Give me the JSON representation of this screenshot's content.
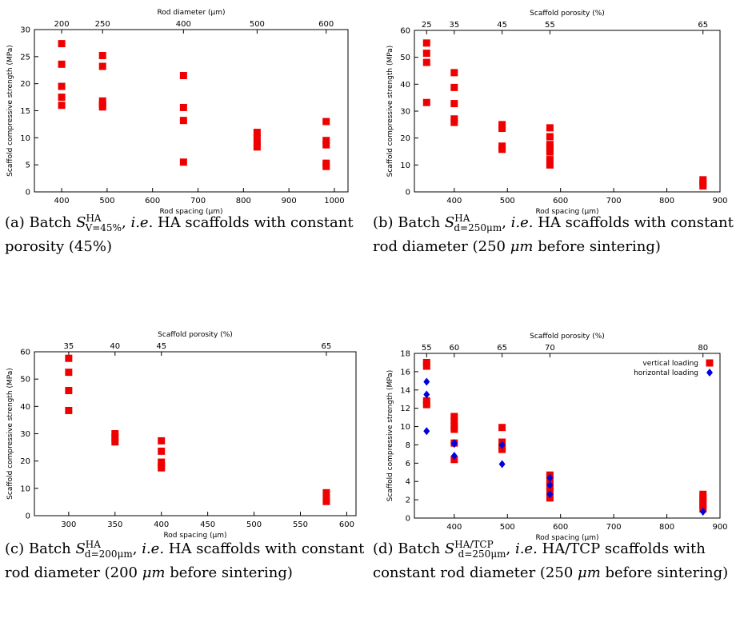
{
  "charts": [
    {
      "id": "a",
      "caption": {
        "label": "(a) Batch ",
        "sym": "S",
        "sup": "HA",
        "sub": "V=45%",
        "ie": "i.e.",
        "rest": " HA scaffolds with constant porosity (45%)"
      },
      "chart_data": {
        "type": "scatter",
        "xlabel": "Rod spacing (µm)",
        "ylabel": "Scaffold compressive strength (MPa)",
        "top_label": "Rod diameter (µm)",
        "xlim": [
          340,
          1030
        ],
        "ylim": [
          0,
          30
        ],
        "xticks": [
          400,
          500,
          600,
          700,
          800,
          900,
          1000
        ],
        "yticks": [
          0,
          5,
          10,
          15,
          20,
          25,
          30
        ],
        "top_ticks": [
          {
            "label": "200",
            "x": 400
          },
          {
            "label": "250",
            "x": 490
          },
          {
            "label": "400",
            "x": 668
          },
          {
            "label": "500",
            "x": 830
          },
          {
            "label": "600",
            "x": 982
          }
        ],
        "series": [
          {
            "marker": "square",
            "color": "#ee0000",
            "points": [
              [
                400,
                27.4
              ],
              [
                400,
                23.6
              ],
              [
                400,
                19.5
              ],
              [
                400,
                17.5
              ],
              [
                400,
                16
              ],
              [
                490,
                25.2
              ],
              [
                490,
                23.2
              ],
              [
                490,
                16.8
              ],
              [
                490,
                16.1
              ],
              [
                490,
                15.7
              ],
              [
                668,
                21.5
              ],
              [
                668,
                15.6
              ],
              [
                668,
                13.2
              ],
              [
                668,
                5.5
              ],
              [
                830,
                11
              ],
              [
                830,
                10
              ],
              [
                830,
                9
              ],
              [
                830,
                8.3
              ],
              [
                982,
                13
              ],
              [
                982,
                9.5
              ],
              [
                982,
                8.7
              ],
              [
                982,
                5.3
              ],
              [
                982,
                4.7
              ]
            ]
          }
        ]
      }
    },
    {
      "id": "b",
      "caption": {
        "label": "(b) Batch ",
        "sym": "S",
        "sup": "HA",
        "sub": "d=250μm",
        "ie": "i.e.",
        "rest": " HA scaffolds with constant rod diameter (250 ",
        "unit": "μm",
        "rest2": " before sintering)"
      },
      "chart_data": {
        "type": "scatter",
        "xlabel": "Rod spacing (µm)",
        "ylabel": "Scaffold compressive strength (MPa)",
        "top_label": "Scaffold porosity (%)",
        "xlim": [
          325,
          900
        ],
        "ylim": [
          0,
          60
        ],
        "xticks": [
          400,
          500,
          600,
          700,
          800,
          900
        ],
        "yticks": [
          0,
          10,
          20,
          30,
          40,
          50,
          60
        ],
        "top_ticks": [
          {
            "label": "25",
            "x": 348
          },
          {
            "label": "35",
            "x": 400
          },
          {
            "label": "45",
            "x": 490
          },
          {
            "label": "55",
            "x": 580
          },
          {
            "label": "65",
            "x": 868
          }
        ],
        "series": [
          {
            "marker": "square",
            "color": "#ee0000",
            "points": [
              [
                348,
                55.3
              ],
              [
                348,
                51.5
              ],
              [
                348,
                48.1
              ],
              [
                348,
                33.2
              ],
              [
                400,
                44.3
              ],
              [
                400,
                38.8
              ],
              [
                400,
                32.8
              ],
              [
                400,
                27.1
              ],
              [
                400,
                25.8
              ],
              [
                490,
                25
              ],
              [
                490,
                23.6
              ],
              [
                490,
                17
              ],
              [
                490,
                15.8
              ],
              [
                580,
                23.8
              ],
              [
                580,
                20.5
              ],
              [
                580,
                17.6
              ],
              [
                580,
                16
              ],
              [
                580,
                14.8
              ],
              [
                580,
                12
              ],
              [
                580,
                10
              ],
              [
                868,
                4.5
              ],
              [
                868,
                3.3
              ],
              [
                868,
                2.2
              ]
            ]
          }
        ]
      }
    },
    {
      "id": "c",
      "caption": {
        "label": "(c) Batch ",
        "sym": "S",
        "sup": "HA",
        "sub": "d=200μm",
        "ie": "i.e.",
        "rest": " HA scaffolds with constant rod diameter (200 ",
        "unit": "μm",
        "rest2": " before sintering)"
      },
      "chart_data": {
        "type": "scatter",
        "xlabel": "Rod spacing (µm)",
        "ylabel": "Scaffold compressive strength (MPa)",
        "top_label": "Scaffold porosity (%)",
        "xlim": [
          263,
          610
        ],
        "ylim": [
          0,
          60
        ],
        "xticks": [
          300,
          350,
          400,
          450,
          500,
          550,
          600
        ],
        "yticks": [
          0,
          10,
          20,
          30,
          40,
          50,
          60
        ],
        "top_ticks": [
          {
            "label": "35",
            "x": 300
          },
          {
            "label": "40",
            "x": 350
          },
          {
            "label": "45",
            "x": 400
          },
          {
            "label": "65",
            "x": 578
          }
        ],
        "series": [
          {
            "marker": "square",
            "color": "#ee0000",
            "points": [
              [
                300,
                57.6
              ],
              [
                300,
                52.5
              ],
              [
                300,
                45.8
              ],
              [
                300,
                38.5
              ],
              [
                350,
                30
              ],
              [
                350,
                28.5
              ],
              [
                350,
                27
              ],
              [
                400,
                27.4
              ],
              [
                400,
                23.6
              ],
              [
                400,
                19.6
              ],
              [
                400,
                18.3
              ],
              [
                400,
                17.5
              ],
              [
                578,
                8.4
              ],
              [
                578,
                6.4
              ],
              [
                578,
                5.2
              ]
            ]
          }
        ]
      }
    },
    {
      "id": "d",
      "caption": {
        "label": "(d) Batch ",
        "sym": "S",
        "sup": "HA/TCP",
        "sub": "d=250μm",
        "ie": "i.e.",
        "rest": " HA/TCP scaffolds with constant rod diameter (250 ",
        "unit": "μm",
        "rest2": " before sintering)"
      },
      "chart_data": {
        "type": "scatter",
        "xlabel": "Rod spacing (µm)",
        "ylabel": "Scaffold compressive strength (MPa)",
        "top_label": "Scaffold porosity (%)",
        "xlim": [
          325,
          900
        ],
        "ylim": [
          0,
          18
        ],
        "xticks": [
          400,
          500,
          600,
          700,
          800,
          900
        ],
        "yticks": [
          0,
          2,
          4,
          6,
          8,
          10,
          12,
          14,
          16,
          18
        ],
        "top_ticks": [
          {
            "label": "55",
            "x": 348
          },
          {
            "label": "60",
            "x": 400
          },
          {
            "label": "65",
            "x": 490
          },
          {
            "label": "70",
            "x": 580
          },
          {
            "label": "80",
            "x": 868
          }
        ],
        "legend_position": "top-right",
        "series": [
          {
            "name": "vertical loading",
            "marker": "square",
            "color": "#ee0000",
            "points": [
              [
                348,
                17
              ],
              [
                348,
                16.6
              ],
              [
                348,
                12.8
              ],
              [
                348,
                12.4
              ],
              [
                400,
                11.1
              ],
              [
                400,
                10.6
              ],
              [
                400,
                10
              ],
              [
                400,
                9.7
              ],
              [
                400,
                8.2
              ],
              [
                400,
                6.4
              ],
              [
                490,
                9.9
              ],
              [
                490,
                8.3
              ],
              [
                490,
                7.8
              ],
              [
                490,
                7.5
              ],
              [
                580,
                4.7
              ],
              [
                580,
                4.2
              ],
              [
                580,
                3.5
              ],
              [
                580,
                2.9
              ],
              [
                580,
                2.2
              ],
              [
                868,
                2.6
              ],
              [
                868,
                2.2
              ],
              [
                868,
                1.8
              ],
              [
                868,
                1.4
              ],
              [
                868,
                1
              ]
            ]
          },
          {
            "name": "horizontal loading",
            "marker": "diamond",
            "color": "#0000dd",
            "points": [
              [
                348,
                14.9
              ],
              [
                348,
                13.5
              ],
              [
                348,
                9.5
              ],
              [
                400,
                8.2
              ],
              [
                400,
                8.1
              ],
              [
                400,
                6.8
              ],
              [
                490,
                8
              ],
              [
                490,
                5.9
              ],
              [
                580,
                4.4
              ],
              [
                580,
                3.6
              ],
              [
                580,
                2.6
              ],
              [
                868,
                0.7
              ]
            ]
          }
        ]
      }
    }
  ]
}
